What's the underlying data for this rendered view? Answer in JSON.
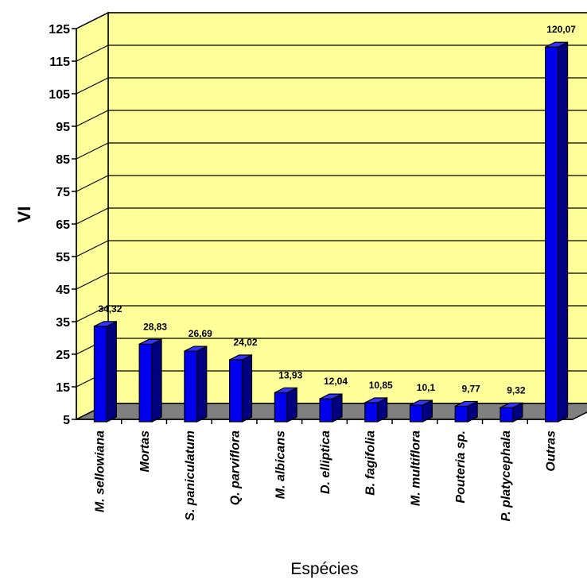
{
  "chart_data": {
    "type": "bar",
    "categories": [
      "M. sellowiana",
      "Mortas",
      "S. paniculatum",
      "Q. parviflora",
      "M. albicans",
      "D. elliptica",
      "B. fagifolia",
      "M. multiflora",
      "Pouteria sp.",
      "P. platycephala",
      "Outras"
    ],
    "values": [
      34.32,
      28.83,
      26.69,
      24.02,
      13.93,
      12.04,
      10.85,
      10.1,
      9.77,
      9.32,
      120.07
    ],
    "data_labels": [
      "34,32",
      "28,83",
      "26,69",
      "24,02",
      "13,93",
      "12,04",
      "10,85",
      "10,1",
      "9,77",
      "9,32",
      "120,07"
    ],
    "yticks": [
      5,
      15,
      25,
      35,
      45,
      55,
      65,
      75,
      85,
      95,
      105,
      115,
      125
    ],
    "ylim": [
      5,
      125
    ],
    "xlabel": "Espécies",
    "ylabel": "VI",
    "grid": true,
    "legend": "none",
    "three_d": true,
    "colors": {
      "bar_front": "#0000ee",
      "bar_side": "#000080",
      "bar_top": "#3333ff",
      "plot_back_wall": "#ffff99",
      "plot_side_wall": "#ffff99",
      "floor": "#808080"
    }
  }
}
